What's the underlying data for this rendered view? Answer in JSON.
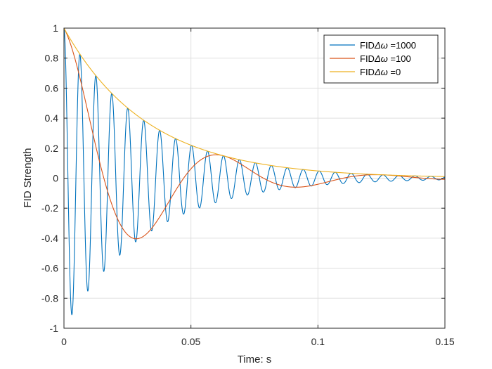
{
  "chart_data": {
    "type": "line",
    "title": "",
    "xlabel": "Time: s",
    "ylabel": "FID Strength",
    "xlim": [
      0,
      0.15
    ],
    "ylim": [
      -1,
      1
    ],
    "xticks": [
      0,
      0.05,
      0.1,
      0.15
    ],
    "xtick_labels": [
      "0",
      "0.05",
      "0.1",
      "0.15"
    ],
    "yticks": [
      -1,
      -0.8,
      -0.6,
      -0.4,
      -0.2,
      0,
      0.2,
      0.4,
      0.6,
      0.8,
      1
    ],
    "ytick_labels": [
      "-1",
      "-0.8",
      "-0.6",
      "-0.4",
      "-0.2",
      "0",
      "0.2",
      "0.4",
      "0.6",
      "0.8",
      "1"
    ],
    "grid": true,
    "legend_position": "top-right",
    "decay_time_constant_s": 0.033,
    "series": [
      {
        "name": "FIDΔω =1000",
        "legend_prefix": "FID",
        "legend_symbol": "Δω",
        "legend_suffix": " =1000",
        "angular_frequency": 1000,
        "color": "#0072BD"
      },
      {
        "name": "FIDΔω =100",
        "legend_prefix": "FID",
        "legend_symbol": "Δω",
        "legend_suffix": " =100",
        "angular_frequency": 100,
        "color": "#D95319"
      },
      {
        "name": "FIDΔω =0",
        "legend_prefix": "FID",
        "legend_symbol": "Δω",
        "legend_suffix": " =0",
        "angular_frequency": 0,
        "color": "#EDB120"
      }
    ]
  }
}
